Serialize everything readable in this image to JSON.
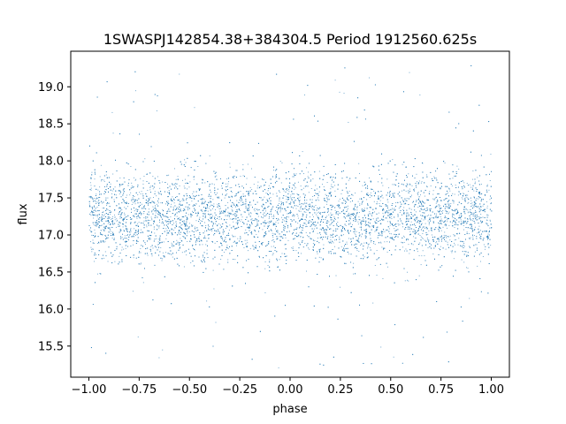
{
  "chart_data": {
    "type": "scatter",
    "title": "1SWASPJ142854.38+384304.5 Period 1912560.625s",
    "xlabel": "phase",
    "ylabel": "flux",
    "xlim": [
      -1.09,
      1.09
    ],
    "ylim": [
      15.08,
      19.48
    ],
    "xticks": [
      -1.0,
      -0.75,
      -0.5,
      -0.25,
      0.0,
      0.25,
      0.5,
      0.75,
      1.0
    ],
    "xtick_labels": [
      "−1.00",
      "−0.75",
      "−0.50",
      "−0.25",
      "0.00",
      "0.25",
      "0.50",
      "0.75",
      "1.00"
    ],
    "yticks": [
      15.5,
      16.0,
      16.5,
      17.0,
      17.5,
      18.0,
      18.5,
      19.0
    ],
    "ytick_labels": [
      "15.5",
      "16.0",
      "16.5",
      "17.0",
      "17.5",
      "18.0",
      "18.5",
      "19.0"
    ],
    "grid": false,
    "marker_color": "#1f77b4",
    "series": [
      {
        "x_range": [
          -1.0,
          1.0
        ],
        "central_flux": 17.25,
        "core_spread": 0.55,
        "outlier_range": [
          15.2,
          19.3
        ]
      }
    ]
  }
}
